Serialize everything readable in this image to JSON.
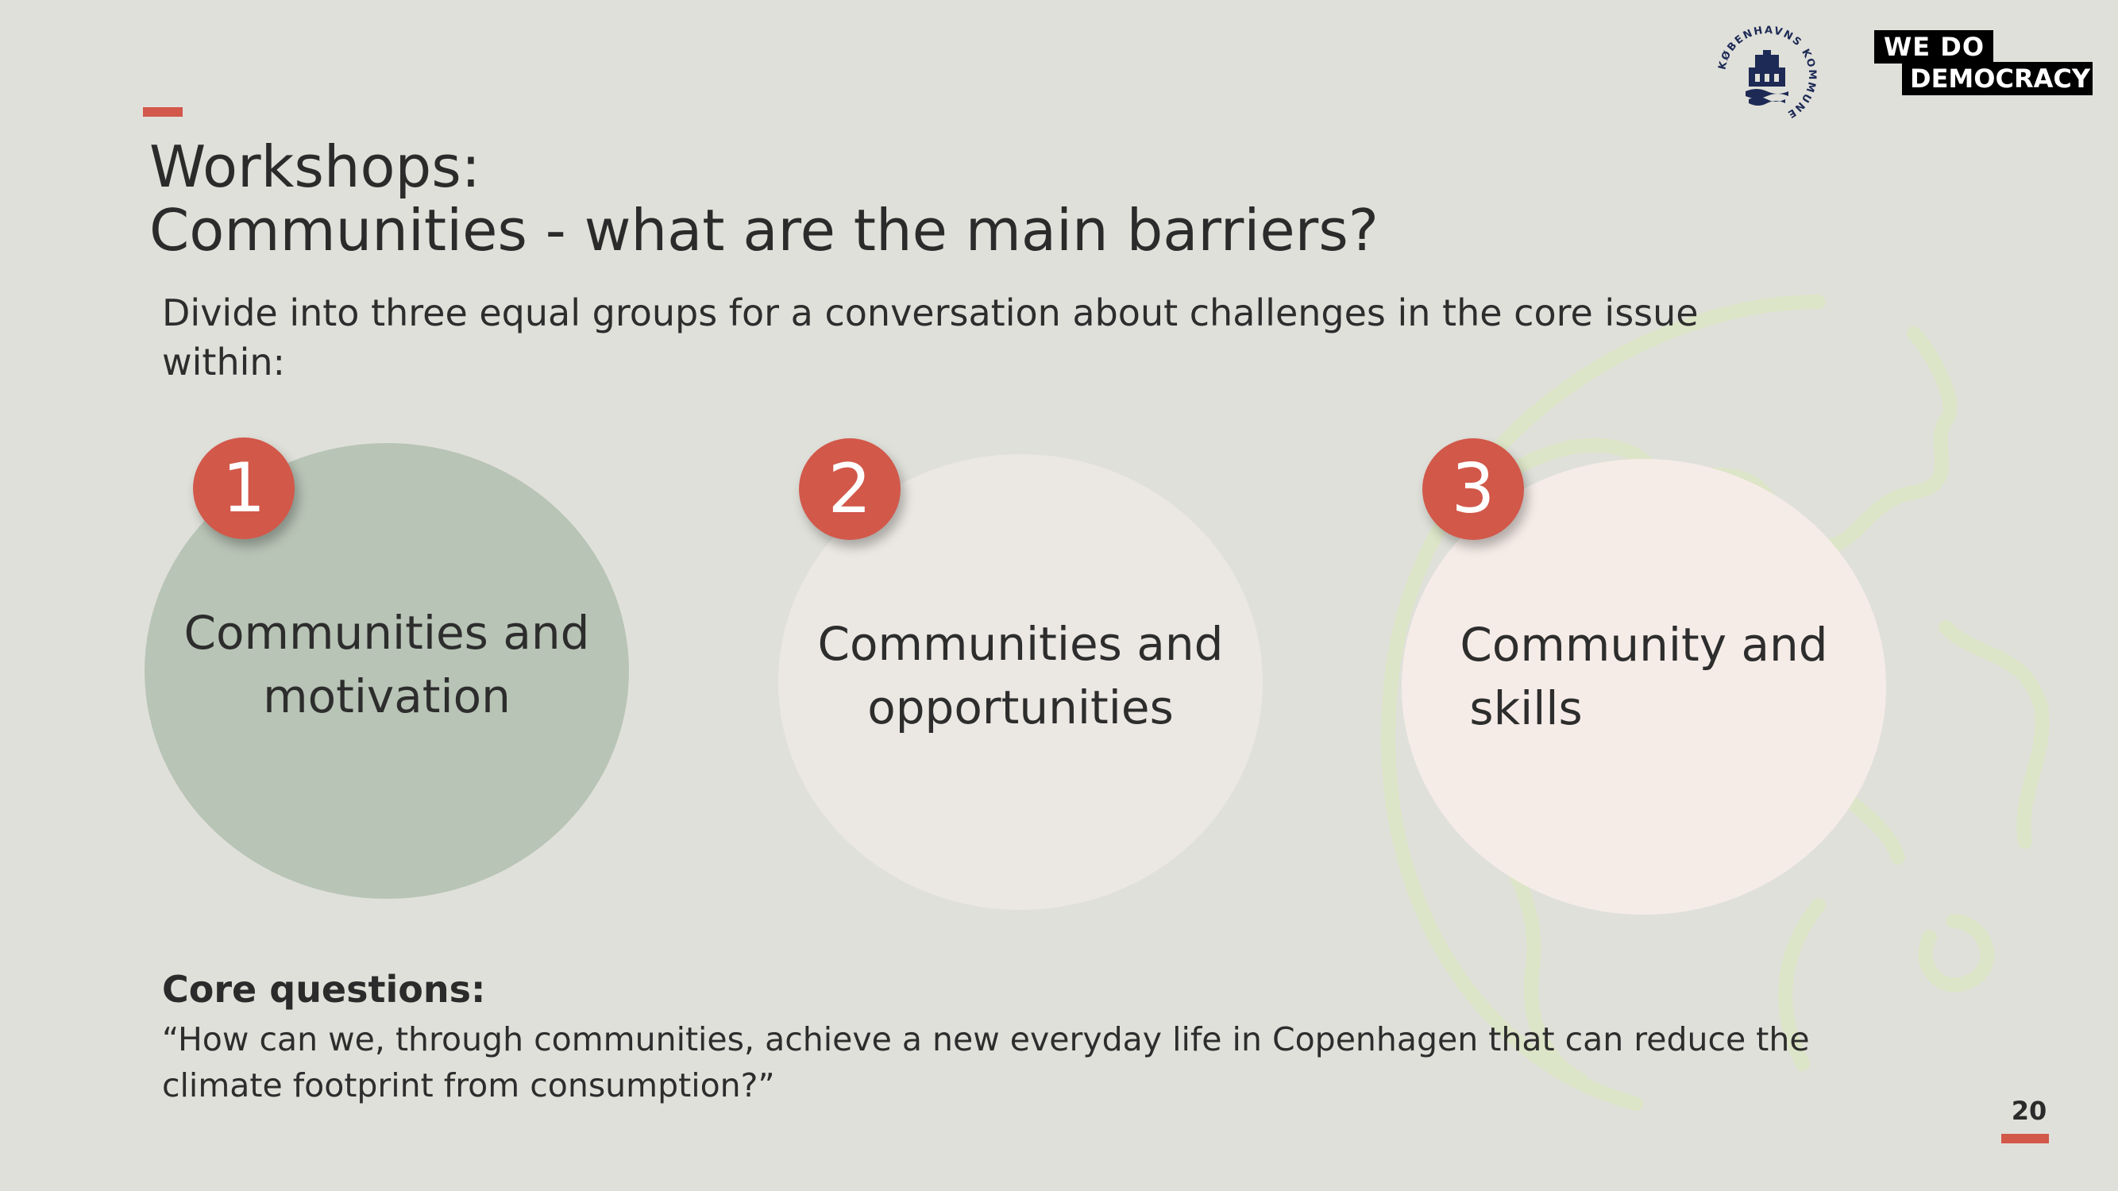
{
  "title": {
    "line1": "Workshops:",
    "line2": "Communities - what are the main barriers?"
  },
  "intro": "Divide into three equal groups for a conversation about challenges in the core issue within:",
  "groups": [
    {
      "number": "1",
      "line1": "Communities and",
      "line2": "motivation",
      "color": "#b8c4b6"
    },
    {
      "number": "2",
      "line1": "Communities and",
      "line2": "opportunities",
      "color": "#ebe8e3"
    },
    {
      "number": "3",
      "line1": "Community and",
      "line2": "skills",
      "color": "#f6ece7"
    }
  ],
  "core": {
    "heading": "Core questions:",
    "text": "“How can we, through communities, achieve a new everyday life in Copenhagen that can reduce the climate footprint from consumption?”"
  },
  "page_number": "20",
  "logos": {
    "kommune": "KØBENHAVNS KOMMUNE",
    "wedo_line1": "WE  DO",
    "wedo_line2": "DEMOCRACY"
  },
  "colors": {
    "accent": "#d2584a",
    "background": "#e0e0da",
    "globe": "#dde5c8"
  },
  "decor": {
    "background_icon": "globe-outline-icon"
  }
}
